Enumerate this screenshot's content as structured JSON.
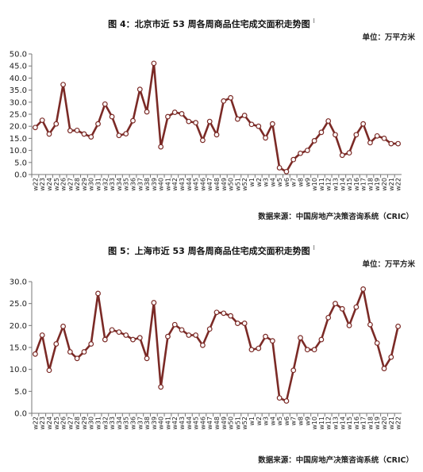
{
  "colors": {
    "line": "#7B2A26",
    "marker_face": "#ffffff",
    "axis": "#777777"
  },
  "charts": [
    {
      "title": "图 4：北京市近 53 周各周商品住宅成交面积走势图",
      "title_mark": "I",
      "unit": "单位：万平方米",
      "source": "数据来源：中国房地产决策咨询系统（CRIC）",
      "chart_data": {
        "type": "line",
        "ylim": [
          0,
          50
        ],
        "yticks": [
          "0.0",
          "5.0",
          "10.0",
          "15.0",
          "20.0",
          "25.0",
          "30.0",
          "35.0",
          "40.0",
          "45.0",
          "50.0"
        ],
        "categories": [
          "w22",
          "w23",
          "w24",
          "w25",
          "w26",
          "w27",
          "w28",
          "w29",
          "w30",
          "w31",
          "w32",
          "w33",
          "w34",
          "w35",
          "w36",
          "w37",
          "w38",
          "w39",
          "w40",
          "w41",
          "w42",
          "w43",
          "w44",
          "w45",
          "w46",
          "w47",
          "w48",
          "w49",
          "w50",
          "w51",
          "w52",
          "w1",
          "w2",
          "w3",
          "w4",
          "w5",
          "w6",
          "w7",
          "w8",
          "w9",
          "w10",
          "w11",
          "w12",
          "w13",
          "w14",
          "w15",
          "w16",
          "w17",
          "w18",
          "w19",
          "w20",
          "w21",
          "w22"
        ],
        "series": [
          {
            "values": [
              19.5,
              22.5,
              16.8,
              21.0,
              37.3,
              18.2,
              18.3,
              16.8,
              15.6,
              21.0,
              29.2,
              24.0,
              16.2,
              16.9,
              22.3,
              35.3,
              26.0,
              46.1,
              11.5,
              24.0,
              25.8,
              25.2,
              22.0,
              21.5,
              14.2,
              22.0,
              16.5,
              30.5,
              31.8,
              23.0,
              24.5,
              20.8,
              20.0,
              15.2,
              21.0,
              2.8,
              1.2,
              6.2,
              8.8,
              10.0,
              14.0,
              17.5,
              22.2,
              16.5,
              8.0,
              9.0,
              16.5,
              21.0,
              13.2,
              16.0,
              15.0,
              12.8,
              12.8
            ]
          }
        ]
      }
    },
    {
      "title": "图 5：上海市近 53 周各周商品住宅成交面积走势图",
      "title_mark": "I",
      "unit": "单位：万平方米",
      "source": "数据来源：中国房地产决策咨询系统（CRIC）",
      "chart_data": {
        "type": "line",
        "ylim": [
          0,
          30
        ],
        "yticks": [
          "0.0",
          "5.0",
          "10.0",
          "15.0",
          "20.0",
          "25.0",
          "30.0"
        ],
        "categories": [
          "w22",
          "w23",
          "w24",
          "w25",
          "w26",
          "w27",
          "w28",
          "w29",
          "w30",
          "w31",
          "w32",
          "w33",
          "w34",
          "w35",
          "w36",
          "w37",
          "w38",
          "w39",
          "w40",
          "w41",
          "w42",
          "w43",
          "w44",
          "w45",
          "w46",
          "w47",
          "w48",
          "w49",
          "w50",
          "w51",
          "w52",
          "w1",
          "w2",
          "w3",
          "w4",
          "w5",
          "w6",
          "w7",
          "w8",
          "w9",
          "w10",
          "w11",
          "w12",
          "w13",
          "w14",
          "w15",
          "w16",
          "w17",
          "w18",
          "w19",
          "w20",
          "w21",
          "w22"
        ],
        "series": [
          {
            "values": [
              13.5,
              17.8,
              9.8,
              15.8,
              19.8,
              14.0,
              12.5,
              14.0,
              15.8,
              27.3,
              16.8,
              19.0,
              18.5,
              17.8,
              16.8,
              17.2,
              12.5,
              25.2,
              6.0,
              17.5,
              20.2,
              19.0,
              17.8,
              17.8,
              15.5,
              19.2,
              23.0,
              22.8,
              22.2,
              20.5,
              20.5,
              14.5,
              14.8,
              17.5,
              16.5,
              3.5,
              2.8,
              9.8,
              17.2,
              14.5,
              14.5,
              16.8,
              21.8,
              25.0,
              23.8,
              20.0,
              24.2,
              28.3,
              20.2,
              16.0,
              10.2,
              12.8,
              19.8
            ]
          }
        ]
      }
    }
  ]
}
